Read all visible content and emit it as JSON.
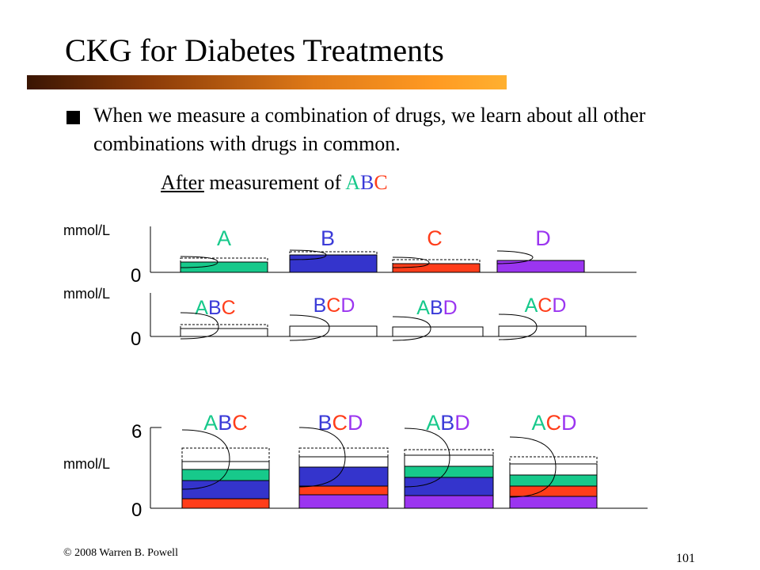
{
  "title": "CKG for Diabetes Treatments",
  "bullet": "When we measure a combination of drugs, we learn about all other combinations with drugs in common.",
  "subtitle": {
    "underlined": "After",
    "rest": " measurement of ",
    "highlight": [
      "A",
      "B",
      "C"
    ]
  },
  "colors": {
    "A": "#17c98b",
    "B": "#3b3bd8",
    "C": "#ff3d1a",
    "D": "#9b35f0"
  },
  "panels": {
    "singles": {
      "unit": "mmol/L",
      "zero": "0",
      "labels": [
        "A",
        "B",
        "C",
        "D"
      ]
    },
    "combos": {
      "unit": "mmol/L",
      "zero": "0",
      "labels": [
        "ABC",
        "BCD",
        "ABD",
        "ACD"
      ]
    },
    "stacked": {
      "unit": "mmol/L",
      "zero": "0",
      "six": "6",
      "labels": [
        "ABC",
        "BCD",
        "ABD",
        "ACD"
      ]
    }
  },
  "footer": {
    "copyright": "© 2008 Warren B. Powell",
    "page": "101"
  }
}
